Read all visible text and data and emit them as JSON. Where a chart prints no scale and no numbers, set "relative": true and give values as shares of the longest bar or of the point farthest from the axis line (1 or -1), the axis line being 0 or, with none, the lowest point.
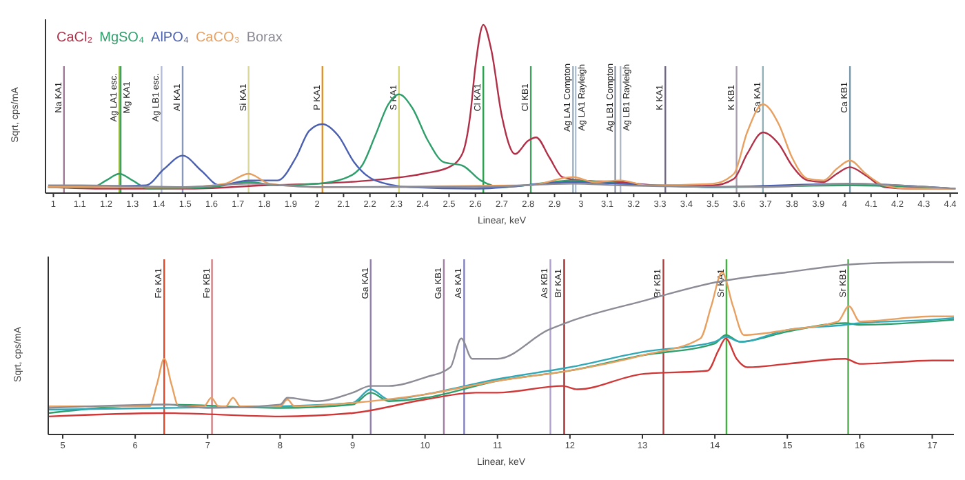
{
  "chart_data": [
    {
      "type": "line",
      "relative": true,
      "xlabel": "Linear, keV",
      "ylabel": "Sqrt, cps/mA",
      "legend": "top left",
      "xlim": [
        0.97,
        4.43
      ],
      "xticks": [
        1,
        1.1,
        1.2,
        1.3,
        1.4,
        1.5,
        1.6,
        1.7,
        1.8,
        1.9,
        2,
        2.1,
        2.2,
        2.3,
        2.4,
        2.5,
        2.6,
        2.7,
        2.8,
        2.9,
        3,
        3.1,
        3.2,
        3.3,
        3.4,
        3.5,
        3.6,
        3.7,
        3.8,
        3.9,
        4,
        4.1,
        4.2,
        4.3,
        4.4
      ],
      "series": [
        {
          "name": "CaCl₂",
          "color": "#b03048",
          "x": [
            0.98,
            1.2,
            1.5,
            1.8,
            2.0,
            2.2,
            2.4,
            2.5,
            2.55,
            2.58,
            2.6,
            2.63,
            2.66,
            2.7,
            2.75,
            2.8,
            2.83,
            2.88,
            2.93,
            3.0,
            3.15,
            3.3,
            3.5,
            3.58,
            3.63,
            3.69,
            3.75,
            3.8,
            3.86,
            3.92,
            3.97,
            4.02,
            4.08,
            4.15,
            4.25,
            4.42
          ],
          "values": [
            0.02,
            0.01,
            0.01,
            0.03,
            0.04,
            0.06,
            0.1,
            0.14,
            0.22,
            0.45,
            0.75,
            1,
            0.85,
            0.45,
            0.22,
            0.3,
            0.32,
            0.2,
            0.08,
            0.06,
            0.05,
            0.03,
            0.03,
            0.07,
            0.22,
            0.35,
            0.28,
            0.15,
            0.06,
            0.05,
            0.1,
            0.14,
            0.09,
            0.02,
            0.01,
            0.01
          ]
        },
        {
          "name": "MgSO₄",
          "color": "#2e9e6a",
          "x": [
            0.98,
            1.15,
            1.2,
            1.25,
            1.3,
            1.36,
            1.6,
            1.74,
            1.85,
            2.0,
            2.1,
            2.17,
            2.22,
            2.27,
            2.31,
            2.36,
            2.42,
            2.48,
            2.55,
            2.62,
            2.7,
            2.97,
            3.15,
            3.5,
            4.02,
            4.42
          ],
          "values": [
            0.02,
            0.02,
            0.06,
            0.1,
            0.06,
            0.01,
            0.02,
            0.05,
            0.03,
            0.04,
            0.07,
            0.15,
            0.33,
            0.52,
            0.58,
            0.5,
            0.3,
            0.17,
            0.15,
            0.06,
            0.02,
            0.06,
            0.04,
            0.02,
            0.03,
            0.01
          ]
        },
        {
          "name": "AlPO₄",
          "color": "#4a5fb0",
          "x": [
            0.98,
            1.35,
            1.42,
            1.49,
            1.56,
            1.63,
            1.74,
            1.85,
            1.92,
            1.97,
            2.02,
            2.08,
            2.14,
            2.22,
            2.35,
            2.6,
            2.97,
            3.15,
            3.5,
            4.02,
            4.42
          ],
          "values": [
            0.02,
            0.03,
            0.13,
            0.21,
            0.12,
            0.03,
            0.06,
            0.06,
            0.2,
            0.36,
            0.4,
            0.33,
            0.17,
            0.06,
            0.02,
            0.01,
            0.05,
            0.04,
            0.02,
            0.04,
            0.01
          ]
        },
        {
          "name": "CaCO₃",
          "color": "#e8a060",
          "x": [
            0.98,
            1.5,
            1.65,
            1.74,
            1.82,
            2.0,
            2.8,
            2.97,
            3.05,
            3.15,
            3.25,
            3.5,
            3.58,
            3.63,
            3.69,
            3.75,
            3.8,
            3.86,
            3.92,
            3.97,
            4.02,
            4.08,
            4.15,
            4.25,
            4.42
          ],
          "values": [
            0.02,
            0.02,
            0.04,
            0.1,
            0.04,
            0.02,
            0.03,
            0.08,
            0.05,
            0.06,
            0.03,
            0.04,
            0.1,
            0.35,
            0.52,
            0.4,
            0.2,
            0.07,
            0.06,
            0.13,
            0.18,
            0.1,
            0.03,
            0.01,
            0.01
          ]
        },
        {
          "name": "Borax",
          "color": "#8c8c96",
          "x": [
            0.98,
            1.1,
            1.5,
            1.74,
            2.0,
            2.6,
            2.97,
            3.15,
            3.7,
            4.02,
            4.42
          ],
          "values": [
            0.03,
            0.03,
            0.02,
            0.04,
            0.02,
            0.02,
            0.04,
            0.03,
            0.02,
            0.04,
            0.01
          ]
        }
      ],
      "ref_lines": [
        {
          "axis": "x",
          "value": 1.04,
          "label": "Na KA1",
          "color": "#a07898"
        },
        {
          "axis": "x",
          "value": 1.25,
          "label": "Ag LA1 esc.",
          "color": "#a0b840"
        },
        {
          "axis": "x",
          "value": 1.255,
          "label": "Mg KA1",
          "color": "#40a060"
        },
        {
          "axis": "x",
          "value": 1.41,
          "label": "Ag LB1 esc.",
          "color": "#b0bcd8"
        },
        {
          "axis": "x",
          "value": 1.49,
          "label": "Al KA1",
          "color": "#8898b8"
        },
        {
          "axis": "x",
          "value": 1.74,
          "label": "Si KA1",
          "color": "#d8d898"
        },
        {
          "axis": "x",
          "value": 2.02,
          "label": "P KA1",
          "color": "#e09030"
        },
        {
          "axis": "x",
          "value": 2.31,
          "label": "S KA1",
          "color": "#d8d870"
        },
        {
          "axis": "x",
          "value": 2.63,
          "label": "Cl KA1",
          "color": "#30a050"
        },
        {
          "axis": "x",
          "value": 2.81,
          "label": "Cl KB1",
          "color": "#40a060"
        },
        {
          "axis": "x",
          "value": 2.97,
          "label": "Ag LA1 Compton",
          "color": "#a0b0c0"
        },
        {
          "axis": "x",
          "value": 2.98,
          "label": "Ag LA1 Rayleigh",
          "color": "#b0c0d0"
        },
        {
          "axis": "x",
          "value": 3.13,
          "label": "Ag LB1 Compton",
          "color": "#9098a8"
        },
        {
          "axis": "x",
          "value": 3.15,
          "label": "Ag LB1 Rayleigh",
          "color": "#b0b8c8"
        },
        {
          "axis": "x",
          "value": 3.32,
          "label": "K KA1",
          "color": "#706880"
        },
        {
          "axis": "x",
          "value": 3.59,
          "label": "K KB1",
          "color": "#a8a0b0"
        },
        {
          "axis": "x",
          "value": 3.69,
          "label": "Ca KA1",
          "color": "#90b0b8"
        },
        {
          "axis": "x",
          "value": 4.02,
          "label": "Ca KB1",
          "color": "#7898a8"
        }
      ]
    },
    {
      "type": "line",
      "relative": true,
      "xlabel": "Linear, keV",
      "ylabel": "Sqrt, cps/mA",
      "xlim": [
        4.8,
        17.3
      ],
      "xticks": [
        5,
        6,
        7,
        8,
        9,
        10,
        11,
        12,
        13,
        14,
        15,
        16,
        17
      ],
      "series": [
        {
          "color": "#d03838",
          "x": [
            4.8,
            6.4,
            8,
            9,
            10,
            10.7,
            11,
            11.9,
            12.1,
            13,
            13.9,
            14.05,
            14.15,
            14.3,
            14.45,
            15,
            15.8,
            16,
            17,
            17.3
          ],
          "values": [
            0.09,
            0.11,
            0.09,
            0.11,
            0.19,
            0.23,
            0.23,
            0.27,
            0.25,
            0.34,
            0.36,
            0.48,
            0.55,
            0.43,
            0.38,
            0.4,
            0.43,
            0.4,
            0.42,
            0.42
          ]
        },
        {
          "color": "#2e9e6a",
          "x": [
            4.8,
            6.4,
            8,
            9,
            9.25,
            9.5,
            10,
            11,
            12,
            13,
            14,
            14.15,
            14.35,
            15,
            15.8,
            16,
            17,
            17.3
          ],
          "values": [
            0.11,
            0.16,
            0.14,
            0.16,
            0.23,
            0.18,
            0.2,
            0.3,
            0.36,
            0.45,
            0.52,
            0.57,
            0.53,
            0.59,
            0.64,
            0.63,
            0.65,
            0.66
          ]
        },
        {
          "color": "#30a8b8",
          "x": [
            4.8,
            6.4,
            8,
            9,
            9.25,
            9.5,
            10,
            11,
            12,
            13,
            14,
            14.15,
            14.35,
            15,
            15.8,
            16,
            17,
            17.3
          ],
          "values": [
            0.13,
            0.14,
            0.15,
            0.17,
            0.25,
            0.19,
            0.22,
            0.31,
            0.38,
            0.47,
            0.53,
            0.56,
            0.53,
            0.6,
            0.63,
            0.64,
            0.66,
            0.67
          ]
        },
        {
          "color": "#e8a060",
          "x": [
            4.8,
            6.2,
            6.3,
            6.4,
            6.5,
            6.6,
            6.95,
            7.05,
            7.15,
            7.25,
            7.35,
            7.45,
            8,
            8.1,
            8.2,
            9,
            10,
            11,
            12,
            13,
            13.8,
            13.95,
            14.1,
            14.25,
            14.4,
            15,
            15.7,
            15.85,
            16,
            17,
            17.3
          ],
          "values": [
            0.15,
            0.15,
            0.28,
            0.43,
            0.28,
            0.15,
            0.15,
            0.2,
            0.15,
            0.15,
            0.2,
            0.15,
            0.15,
            0.19,
            0.15,
            0.17,
            0.22,
            0.3,
            0.36,
            0.45,
            0.55,
            0.74,
            0.94,
            0.74,
            0.57,
            0.6,
            0.65,
            0.74,
            0.65,
            0.68,
            0.68
          ]
        },
        {
          "color": "#8c8c96",
          "x": [
            4.8,
            6.4,
            7,
            8,
            8.1,
            8.5,
            9,
            9.25,
            9.5,
            10,
            10.35,
            10.5,
            10.65,
            11,
            11.7,
            12,
            13,
            14,
            15,
            16,
            17,
            17.3
          ],
          "values": [
            0.14,
            0.16,
            0.14,
            0.16,
            0.2,
            0.18,
            0.23,
            0.27,
            0.27,
            0.32,
            0.38,
            0.55,
            0.43,
            0.43,
            0.6,
            0.65,
            0.77,
            0.88,
            0.94,
            0.99,
            1,
            1
          ]
        }
      ],
      "ref_lines": [
        {
          "axis": "x",
          "value": 6.4,
          "label": "Fe KA1",
          "color": "#e04a2a"
        },
        {
          "axis": "x",
          "value": 7.06,
          "label": "Fe KB1",
          "color": "#d08080"
        },
        {
          "axis": "x",
          "value": 9.25,
          "label": "Ga KA1",
          "color": "#9080b0"
        },
        {
          "axis": "x",
          "value": 10.26,
          "label": "Ga KB1",
          "color": "#a080a0"
        },
        {
          "axis": "x",
          "value": 10.54,
          "label": "As KA1",
          "color": "#8080c0"
        },
        {
          "axis": "x",
          "value": 11.73,
          "label": "As KB1",
          "color": "#b0a0d0"
        },
        {
          "axis": "x",
          "value": 11.92,
          "label": "Br KA1",
          "color": "#a03030"
        },
        {
          "axis": "x",
          "value": 13.29,
          "label": "Br KB1",
          "color": "#b04040"
        },
        {
          "axis": "x",
          "value": 14.16,
          "label": "Sr KA1",
          "color": "#40b040"
        },
        {
          "axis": "x",
          "value": 15.84,
          "label": "Sr KB1",
          "color": "#50b050"
        }
      ]
    }
  ]
}
